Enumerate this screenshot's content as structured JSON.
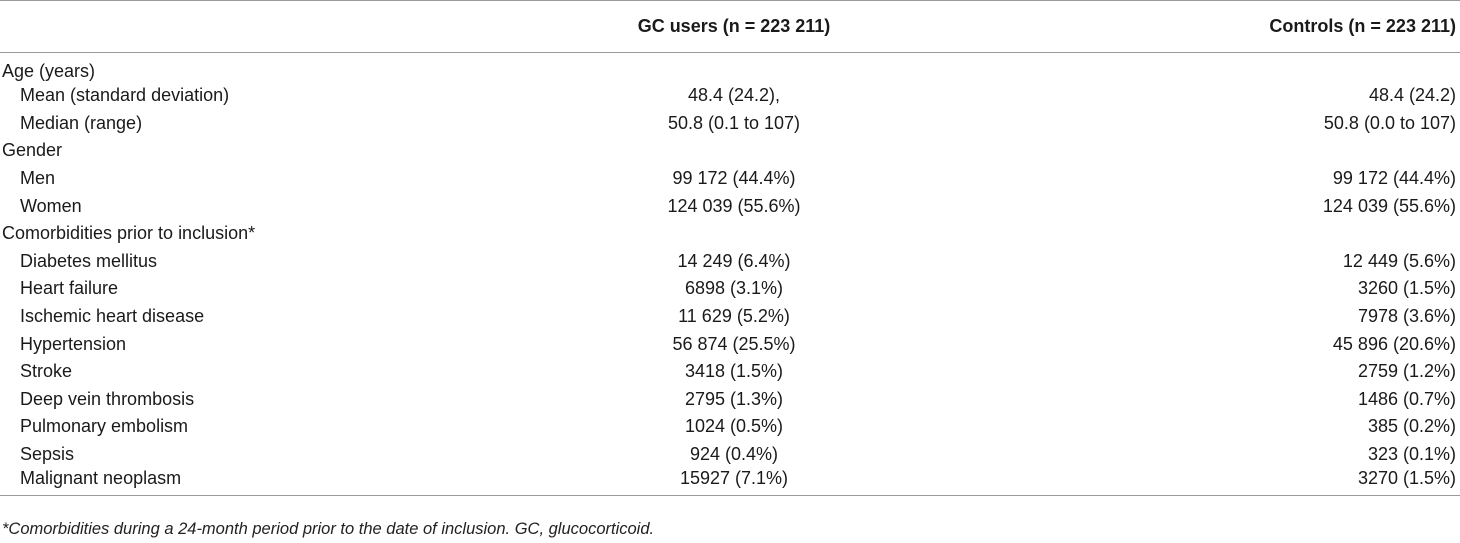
{
  "table": {
    "headers": {
      "label": "",
      "gc_users": "GC users (n = 223 211)",
      "controls": "Controls (n = 223 211)"
    },
    "rows": [
      {
        "label": "Age (years)",
        "indent": false,
        "gc": "",
        "ctrl": ""
      },
      {
        "label": "Mean (standard deviation)",
        "indent": true,
        "gc": "48.4 (24.2),",
        "ctrl": "48.4 (24.2)"
      },
      {
        "label": "Median (range)",
        "indent": true,
        "gc": "50.8 (0.1 to 107)",
        "ctrl": "50.8 (0.0 to 107)"
      },
      {
        "label": "Gender",
        "indent": false,
        "gc": "",
        "ctrl": ""
      },
      {
        "label": "Men",
        "indent": true,
        "gc": "99 172 (44.4%)",
        "ctrl": "99 172 (44.4%)"
      },
      {
        "label": "Women",
        "indent": true,
        "gc": "124 039 (55.6%)",
        "ctrl": "124 039 (55.6%)"
      },
      {
        "label": "Comorbidities prior to inclusion*",
        "indent": false,
        "gc": "",
        "ctrl": ""
      },
      {
        "label": "Diabetes mellitus",
        "indent": true,
        "gc": "14 249 (6.4%)",
        "ctrl": "12 449 (5.6%)"
      },
      {
        "label": "Heart failure",
        "indent": true,
        "gc": "6898 (3.1%)",
        "ctrl": "3260 (1.5%)"
      },
      {
        "label": "Ischemic heart disease",
        "indent": true,
        "gc": "11 629 (5.2%)",
        "ctrl": "7978 (3.6%)"
      },
      {
        "label": "Hypertension",
        "indent": true,
        "gc": "56 874 (25.5%)",
        "ctrl": "45 896 (20.6%)"
      },
      {
        "label": "Stroke",
        "indent": true,
        "gc": "3418 (1.5%)",
        "ctrl": "2759 (1.2%)"
      },
      {
        "label": "Deep vein thrombosis",
        "indent": true,
        "gc": "2795 (1.3%)",
        "ctrl": "1486 (0.7%)"
      },
      {
        "label": "Pulmonary embolism",
        "indent": true,
        "gc": "1024 (0.5%)",
        "ctrl": "385 (0.2%)"
      },
      {
        "label": "Sepsis",
        "indent": true,
        "gc": "924 (0.4%)",
        "ctrl": "323 (0.1%)"
      },
      {
        "label": "Malignant neoplasm",
        "indent": true,
        "gc": "15927 (7.1%)",
        "ctrl": "3270 (1.5%)"
      }
    ]
  },
  "footnote": "*Comorbidities during a 24-month period prior to the date of inclusion. GC, glucocorticoid."
}
